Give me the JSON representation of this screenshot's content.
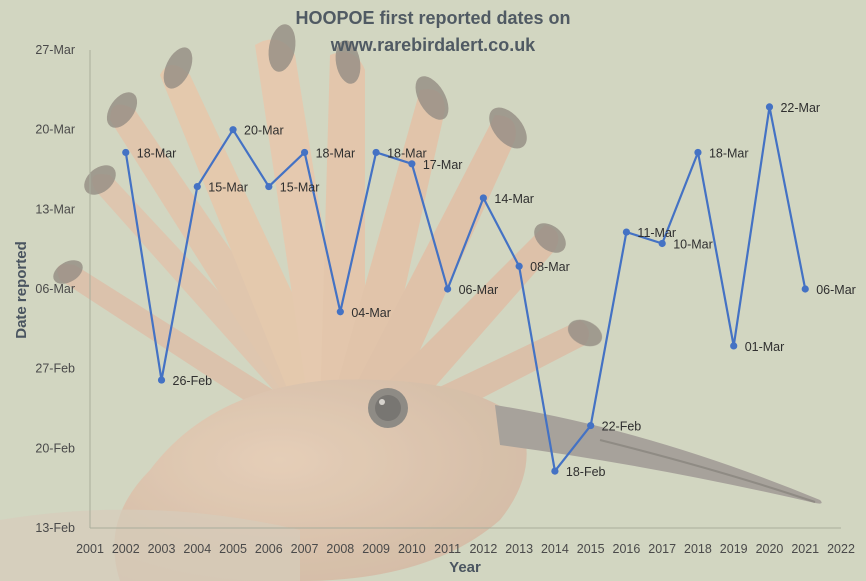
{
  "chart_data": {
    "type": "line",
    "title_lines": [
      "HOOPOE first reported dates on",
      "www.rarebirdalert.co.uk"
    ],
    "xlabel": "Year",
    "ylabel": "Date reported",
    "x_ticks": [
      2001,
      2002,
      2003,
      2004,
      2005,
      2006,
      2007,
      2008,
      2009,
      2010,
      2011,
      2012,
      2013,
      2014,
      2015,
      2016,
      2017,
      2018,
      2019,
      2020,
      2021,
      2022
    ],
    "xlim": [
      2001,
      2022
    ],
    "y_ticks": [
      {
        "label": "13-Feb",
        "day_of_year": 44
      },
      {
        "label": "20-Feb",
        "day_of_year": 51
      },
      {
        "label": "27-Feb",
        "day_of_year": 58
      },
      {
        "label": "06-Mar",
        "day_of_year": 65
      },
      {
        "label": "13-Mar",
        "day_of_year": 72
      },
      {
        "label": "20-Mar",
        "day_of_year": 79
      },
      {
        "label": "27-Mar",
        "day_of_year": 86
      }
    ],
    "ylim": [
      44,
      86
    ],
    "gridlines": false,
    "line_color": "#4472c4",
    "series": [
      {
        "points": [
          {
            "x": 2002,
            "day_of_year": 77,
            "label": "18-Mar"
          },
          {
            "x": 2003,
            "day_of_year": 57,
            "label": "26-Feb"
          },
          {
            "x": 2004,
            "day_of_year": 74,
            "label": "15-Mar"
          },
          {
            "x": 2005,
            "day_of_year": 79,
            "label": "20-Mar"
          },
          {
            "x": 2006,
            "day_of_year": 74,
            "label": "15-Mar"
          },
          {
            "x": 2007,
            "day_of_year": 77,
            "label": "18-Mar"
          },
          {
            "x": 2008,
            "day_of_year": 63,
            "label": "04-Mar"
          },
          {
            "x": 2009,
            "day_of_year": 77,
            "label": "18-Mar"
          },
          {
            "x": 2010,
            "day_of_year": 76,
            "label": "17-Mar"
          },
          {
            "x": 2011,
            "day_of_year": 65,
            "label": "06-Mar"
          },
          {
            "x": 2012,
            "day_of_year": 73,
            "label": "14-Mar"
          },
          {
            "x": 2013,
            "day_of_year": 67,
            "label": "08-Mar"
          },
          {
            "x": 2014,
            "day_of_year": 49,
            "label": "18-Feb"
          },
          {
            "x": 2015,
            "day_of_year": 53,
            "label": "22-Feb"
          },
          {
            "x": 2016,
            "day_of_year": 70,
            "label": "11-Mar"
          },
          {
            "x": 2017,
            "day_of_year": 69,
            "label": "10-Mar"
          },
          {
            "x": 2018,
            "day_of_year": 77,
            "label": "18-Mar"
          },
          {
            "x": 2019,
            "day_of_year": 60,
            "label": "01-Mar"
          },
          {
            "x": 2020,
            "day_of_year": 81,
            "label": "22-Mar"
          },
          {
            "x": 2021,
            "day_of_year": 65,
            "label": "06-Mar"
          }
        ]
      }
    ]
  }
}
